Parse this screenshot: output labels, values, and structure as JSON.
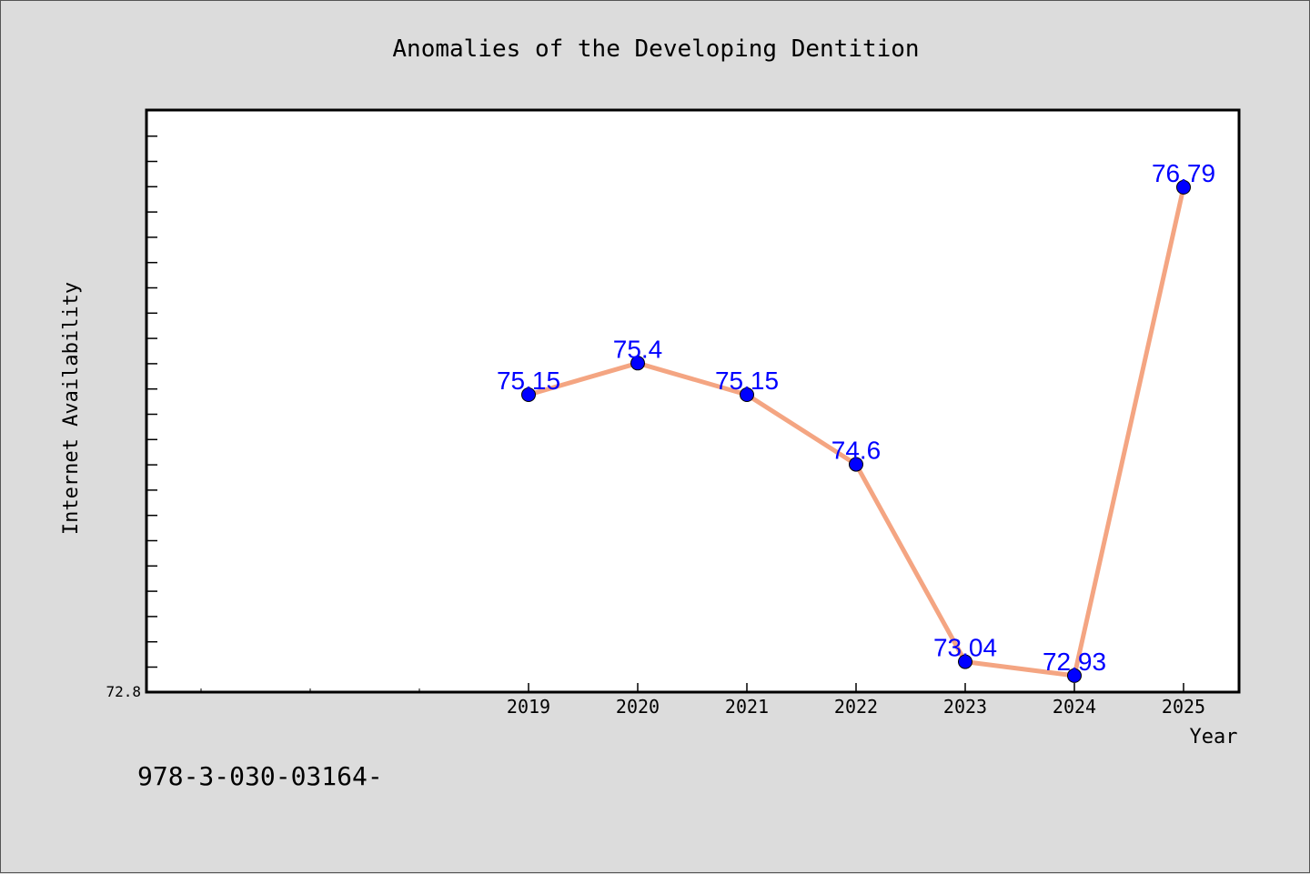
{
  "chart_data": {
    "type": "line",
    "title": "Anomalies of the Developing Dentition",
    "xlabel": "Year",
    "ylabel": "Internet Availability",
    "categories": [
      "2019",
      "2020",
      "2021",
      "2022",
      "2023",
      "2024",
      "2025"
    ],
    "values": [
      75.15,
      75.4,
      75.15,
      74.6,
      73.04,
      72.93,
      76.79
    ],
    "data_labels": [
      "75.15",
      "75.4",
      "75.15",
      "74.6",
      "73.04",
      "72.93",
      "76.79"
    ],
    "ylim": [
      72.8,
      77.4
    ],
    "yticks": [
      "72.8"
    ],
    "grid": false,
    "line_color": "#f4a582",
    "marker_color": "#0000ff",
    "label_color": "#0000ff"
  },
  "footer_text": "978-3-030-03164-"
}
